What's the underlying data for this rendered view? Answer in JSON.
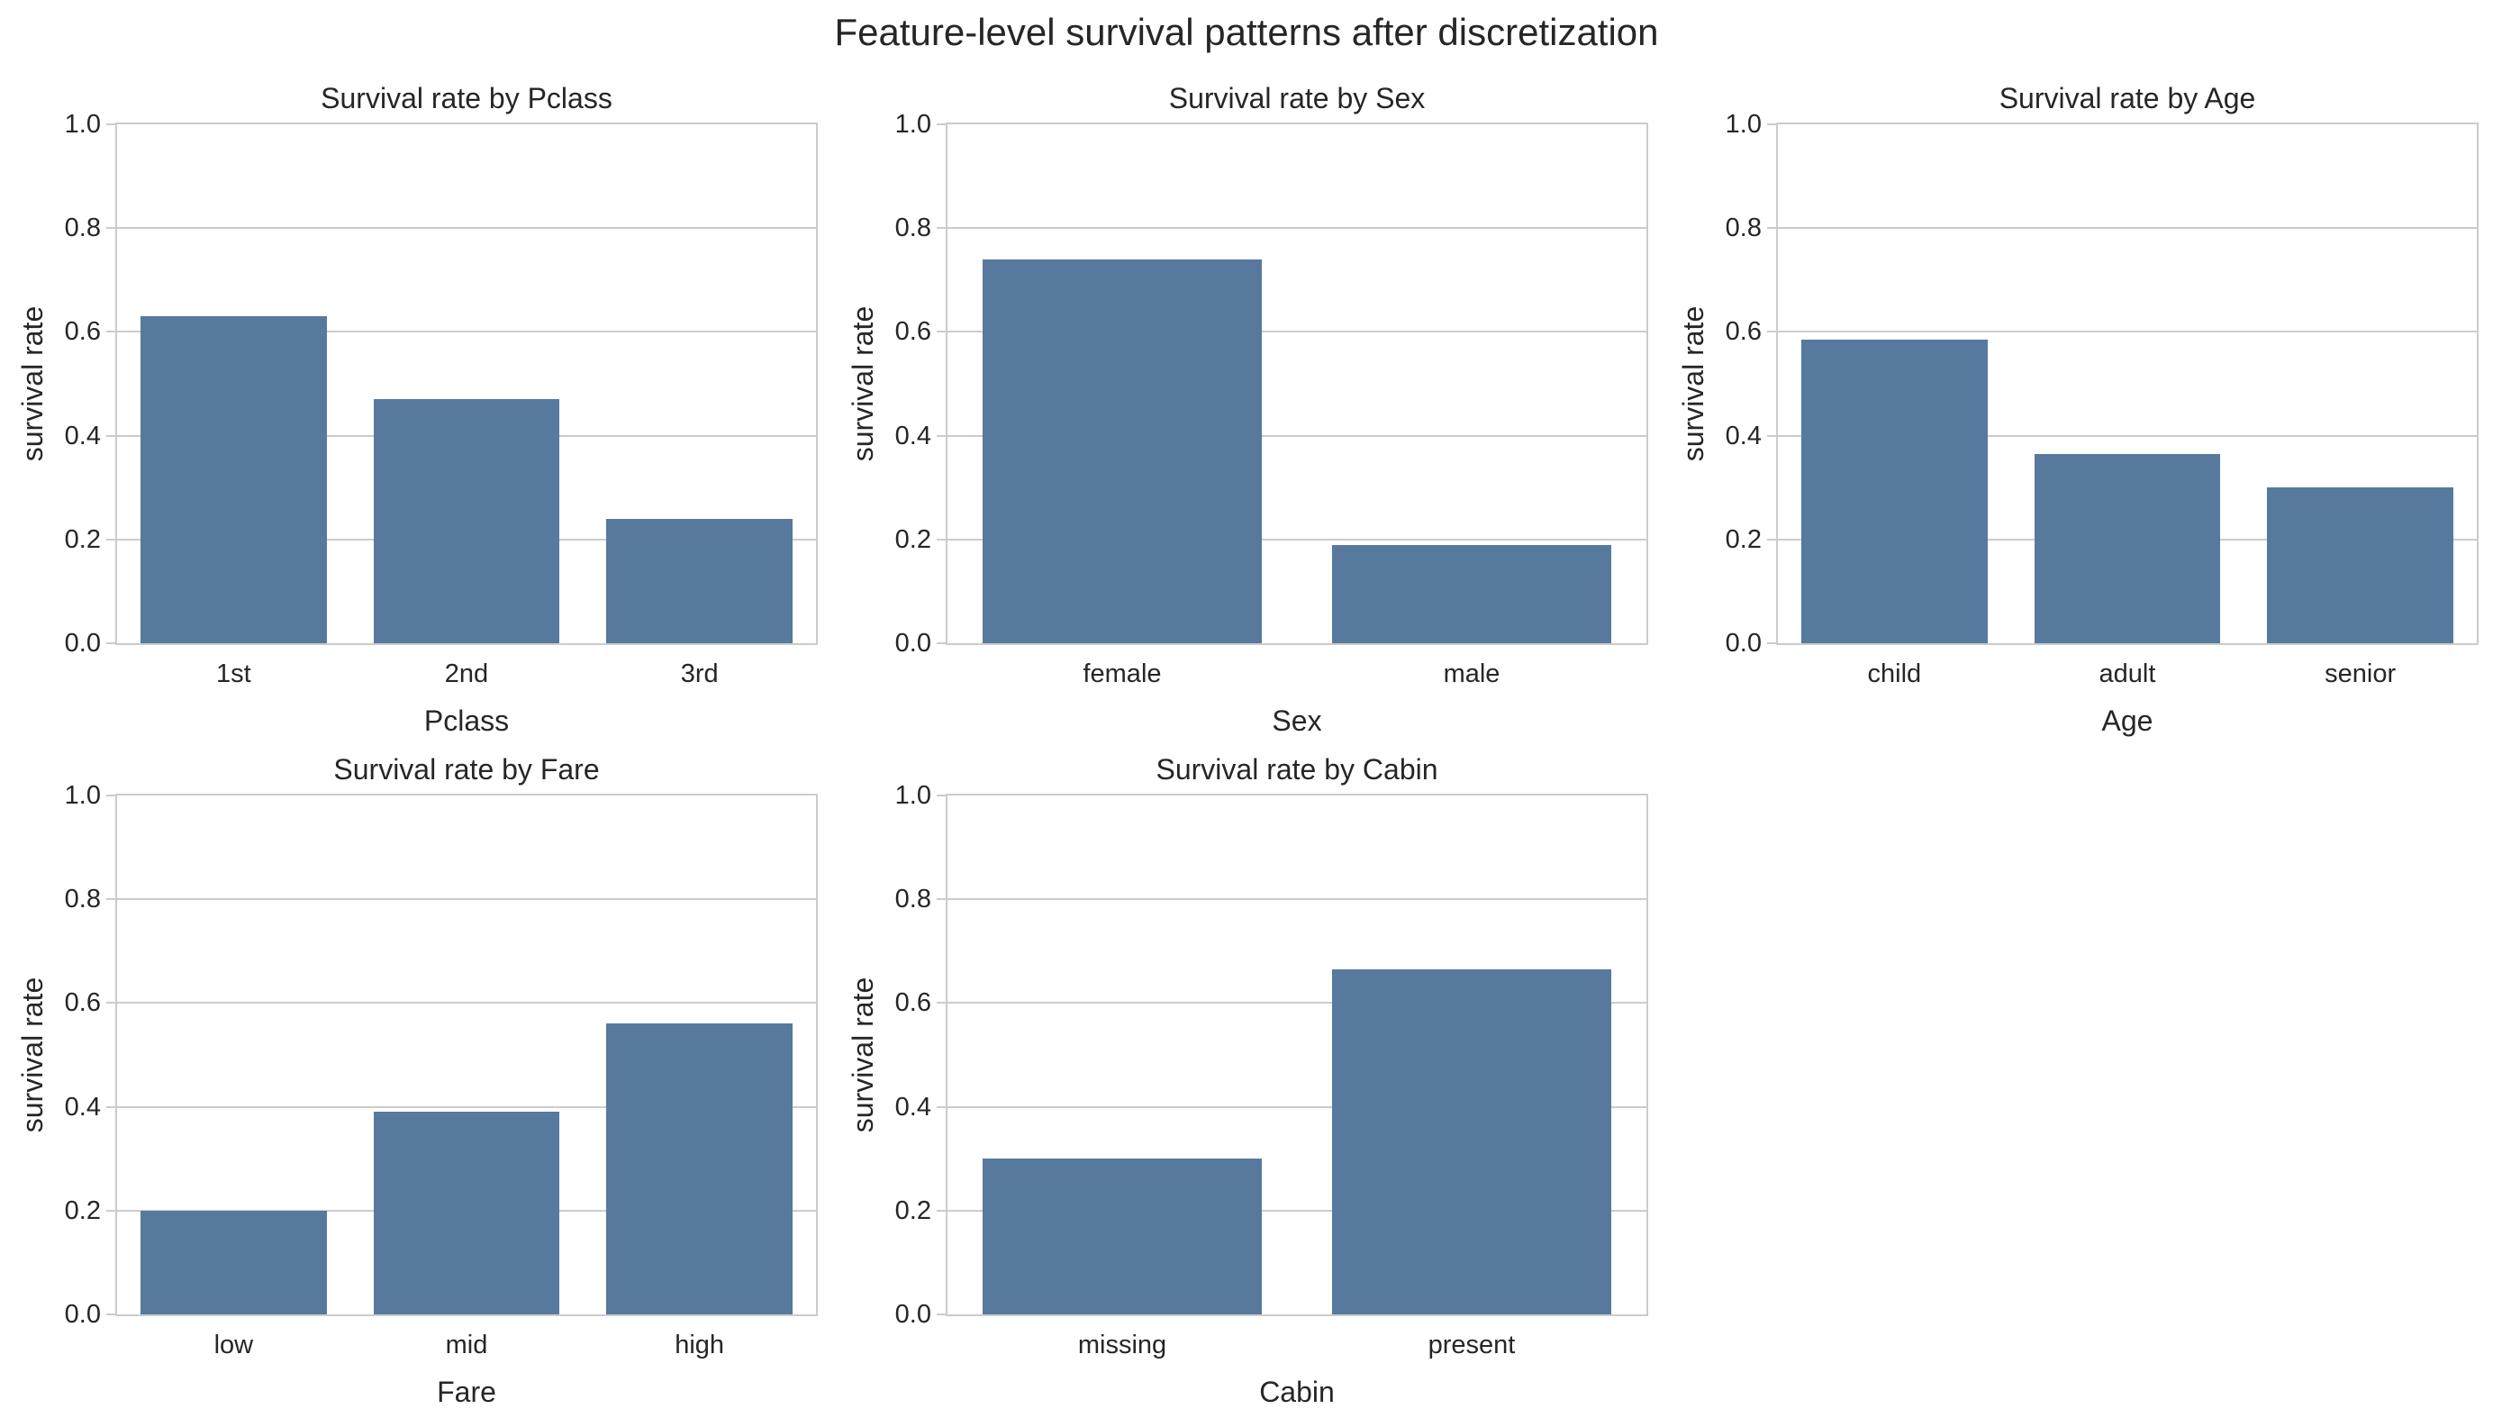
{
  "figure": {
    "suptitle": "Feature-level survival patterns after discretization"
  },
  "style": {
    "bar_color": "#57799e",
    "grid_color": "#cccccc",
    "spine_color": "#cccccc",
    "text_color": "#262626",
    "background": "#ffffff"
  },
  "chart_data": [
    {
      "type": "bar",
      "title": "Survival rate by Pclass",
      "xlabel": "Pclass",
      "ylabel": "survival rate",
      "categories": [
        "1st",
        "2nd",
        "3rd"
      ],
      "values": [
        0.63,
        0.47,
        0.24
      ],
      "ylim": [
        0.0,
        1.0
      ],
      "yticks": [
        0.0,
        0.2,
        0.4,
        0.6,
        0.8,
        1.0
      ],
      "ytick_labels": [
        "0.0",
        "0.2",
        "0.4",
        "0.6",
        "0.8",
        "1.0"
      ],
      "grid": "horizontal",
      "legend": "none",
      "bar_fraction": 0.8
    },
    {
      "type": "bar",
      "title": "Survival rate by Sex",
      "xlabel": "Sex",
      "ylabel": "survival rate",
      "categories": [
        "female",
        "male"
      ],
      "values": [
        0.74,
        0.19
      ],
      "ylim": [
        0.0,
        1.0
      ],
      "yticks": [
        0.0,
        0.2,
        0.4,
        0.6,
        0.8,
        1.0
      ],
      "ytick_labels": [
        "0.0",
        "0.2",
        "0.4",
        "0.6",
        "0.8",
        "1.0"
      ],
      "grid": "horizontal",
      "legend": "none",
      "bar_fraction": 0.8
    },
    {
      "type": "bar",
      "title": "Survival rate by Age",
      "xlabel": "Age",
      "ylabel": "survival rate",
      "categories": [
        "child",
        "adult",
        "senior"
      ],
      "values": [
        0.585,
        0.365,
        0.3
      ],
      "ylim": [
        0.0,
        1.0
      ],
      "yticks": [
        0.0,
        0.2,
        0.4,
        0.6,
        0.8,
        1.0
      ],
      "ytick_labels": [
        "0.0",
        "0.2",
        "0.4",
        "0.6",
        "0.8",
        "1.0"
      ],
      "grid": "horizontal",
      "legend": "none",
      "bar_fraction": 0.8
    },
    {
      "type": "bar",
      "title": "Survival rate by Fare",
      "xlabel": "Fare",
      "ylabel": "survival rate",
      "categories": [
        "low",
        "mid",
        "high"
      ],
      "values": [
        0.2,
        0.39,
        0.56
      ],
      "ylim": [
        0.0,
        1.0
      ],
      "yticks": [
        0.0,
        0.2,
        0.4,
        0.6,
        0.8,
        1.0
      ],
      "ytick_labels": [
        "0.0",
        "0.2",
        "0.4",
        "0.6",
        "0.8",
        "1.0"
      ],
      "grid": "horizontal",
      "legend": "none",
      "bar_fraction": 0.8
    },
    {
      "type": "bar",
      "title": "Survival rate by Cabin",
      "xlabel": "Cabin",
      "ylabel": "survival rate",
      "categories": [
        "missing",
        "present"
      ],
      "values": [
        0.3,
        0.665
      ],
      "ylim": [
        0.0,
        1.0
      ],
      "yticks": [
        0.0,
        0.2,
        0.4,
        0.6,
        0.8,
        1.0
      ],
      "ytick_labels": [
        "0.0",
        "0.2",
        "0.4",
        "0.6",
        "0.8",
        "1.0"
      ],
      "grid": "horizontal",
      "legend": "none",
      "bar_fraction": 0.8
    }
  ]
}
